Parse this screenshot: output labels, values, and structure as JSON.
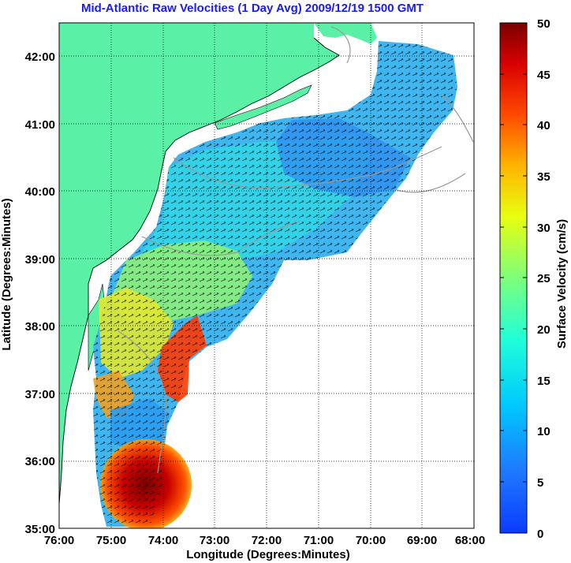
{
  "title": "Mid-Atlantic Raw Velocities (1 Day Avg) 2009/12/19 1500 GMT",
  "colors": {
    "title": "#1a1aff",
    "land": "#5af0a6",
    "grid": "#000000",
    "contour": "#999999"
  },
  "chart_data": {
    "type": "heatmap",
    "x_axis": {
      "label": "Longitude (Degrees:Minutes)",
      "ticks": [
        "76:00",
        "75:00",
        "74:00",
        "73:00",
        "72:00",
        "71:00",
        "70:00",
        "69:00",
        "68:00"
      ],
      "range": [
        -76,
        -68
      ]
    },
    "y_axis": {
      "label": "Latitude (Degrees:Minutes)",
      "ticks": [
        "35:00",
        "36:00",
        "37:00",
        "38:00",
        "39:00",
        "40:00",
        "41:00",
        "42:00"
      ],
      "range": [
        35,
        42.5
      ]
    },
    "colorbar": {
      "label": "Surface Velocity (cm/s)",
      "ticks": [
        "0",
        "5",
        "10",
        "15",
        "20",
        "25",
        "30",
        "35",
        "40",
        "45",
        "50"
      ],
      "range": [
        0,
        50
      ],
      "colormap": "jet"
    },
    "grid": true
  }
}
